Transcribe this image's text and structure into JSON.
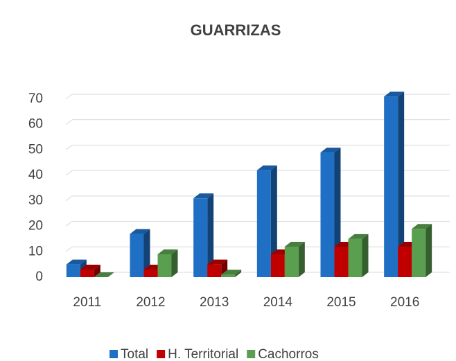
{
  "chart_data": {
    "type": "bar3d",
    "title": "GUARRIZAS",
    "categories": [
      "2011",
      "2012",
      "2013",
      "2014",
      "2015",
      "2016"
    ],
    "series": [
      {
        "name": "Total",
        "color": "#1f6fc5",
        "values": [
          5,
          17,
          31,
          42,
          49,
          71
        ]
      },
      {
        "name": "H. Territorial",
        "color": "#c00000",
        "values": [
          3,
          3,
          5,
          9,
          12,
          12
        ]
      },
      {
        "name": "Cachorros",
        "color": "#5a9e4f",
        "values": [
          0,
          9,
          1,
          12,
          15,
          19
        ]
      }
    ],
    "ylim": [
      0,
      70
    ],
    "yticks": [
      0,
      10,
      20,
      30,
      40,
      50,
      60,
      70
    ],
    "grid": true,
    "legend": "bottom"
  }
}
